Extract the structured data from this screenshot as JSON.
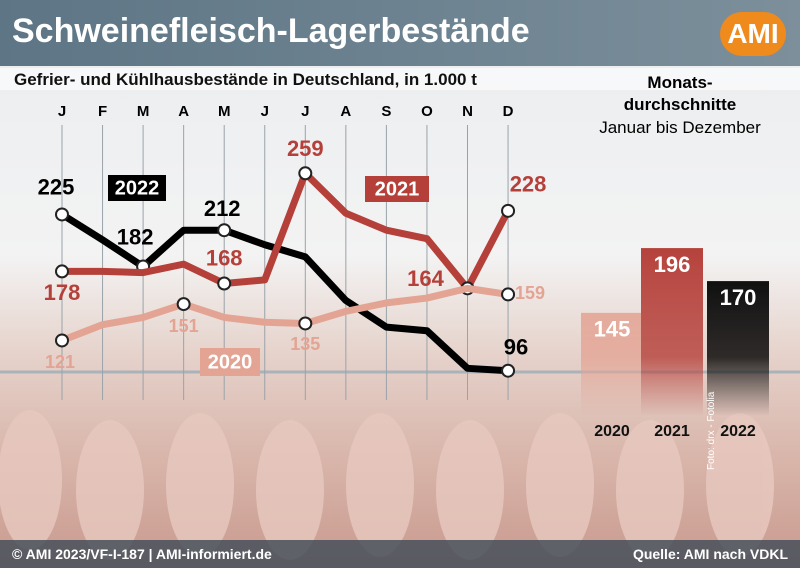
{
  "header": {
    "title": "Schweinefleisch-Lagerbestände",
    "logo": "AMI"
  },
  "chart_data": [
    {
      "type": "line",
      "title": "Gefrier- und Kühlhausbestände in Deutschland, in 1.000 t",
      "categories": [
        "J",
        "F",
        "M",
        "A",
        "M",
        "J",
        "J",
        "A",
        "S",
        "O",
        "N",
        "D"
      ],
      "ylim": [
        90,
        265
      ],
      "grid": true,
      "series": [
        {
          "name": "2022",
          "color": "#000000",
          "values": [
            225,
            204,
            182,
            212,
            212,
            200,
            190,
            154,
            132,
            129,
            98,
            96
          ],
          "value_labels": [
            "225",
            null,
            "182",
            null,
            "212",
            null,
            null,
            null,
            null,
            null,
            null,
            "96"
          ]
        },
        {
          "name": "2021",
          "color": "#b5403a",
          "values": [
            178,
            178,
            177,
            184,
            168,
            171,
            259,
            226,
            212,
            205,
            164,
            228
          ],
          "value_labels": [
            "178",
            null,
            null,
            null,
            "168",
            null,
            "259",
            null,
            null,
            null,
            "164",
            "228"
          ]
        },
        {
          "name": "2020",
          "color": "#e3a494",
          "values": [
            121,
            134,
            140,
            151,
            140,
            136,
            135,
            145,
            152,
            156,
            164,
            159
          ],
          "value_labels": [
            "121",
            null,
            null,
            "151",
            null,
            null,
            "135",
            null,
            null,
            null,
            null,
            "159"
          ]
        }
      ]
    },
    {
      "type": "bar",
      "title": "Monats-\ndurchschnitte",
      "subtitle": "Januar bis Dezember",
      "categories": [
        "2020",
        "2021",
        "2022"
      ],
      "values": [
        145,
        196,
        170
      ],
      "colors": [
        "#e3a494",
        "#b5403a",
        "#000000"
      ],
      "ylim": [
        0,
        200
      ]
    }
  ],
  "footer": {
    "copyright": "© AMI 2023/VF-I-187 | AMI-informiert.de",
    "source": "Quelle: AMI nach VDKL",
    "photo": "Foto: drx - Fotolia"
  }
}
